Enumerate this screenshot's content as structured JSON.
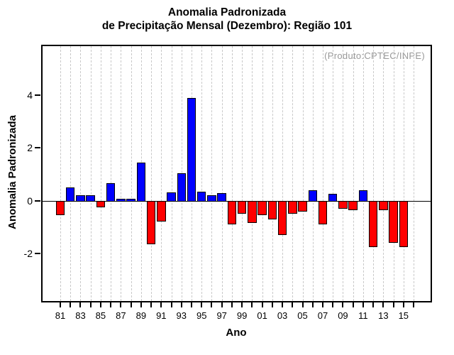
{
  "title": {
    "line1": "Anomalia Padronizada",
    "line2": "de Precipitação Mensal (Dezembro): Região 101"
  },
  "chart_data": {
    "type": "bar",
    "title": "Anomalia Padronizada de Precipitação Mensal (Dezembro): Região 101",
    "xlabel": "Ano",
    "ylabel": "Anomalia Padronizada",
    "annotation": "(Produto:CPTEC/INPE)",
    "annotation_color": "#999999",
    "categories": [
      "81",
      "82",
      "83",
      "84",
      "85",
      "86",
      "87",
      "88",
      "89",
      "90",
      "91",
      "92",
      "93",
      "94",
      "95",
      "96",
      "97",
      "98",
      "99",
      "00",
      "01",
      "02",
      "03",
      "04",
      "05",
      "06",
      "07",
      "08",
      "09",
      "10",
      "11",
      "12",
      "13",
      "14",
      "15"
    ],
    "values": [
      -0.55,
      0.5,
      0.2,
      0.2,
      -0.25,
      0.65,
      0.03,
      0.08,
      1.45,
      -1.65,
      -0.8,
      0.3,
      1.05,
      3.9,
      0.35,
      0.2,
      0.28,
      -0.9,
      -0.5,
      -0.85,
      -0.55,
      -0.7,
      -1.3,
      -0.5,
      -0.4,
      0.38,
      -0.9,
      0.25,
      -0.3,
      -0.35,
      0.4,
      -1.75,
      -0.35,
      -1.6,
      -1.75
    ],
    "x_tick_labels_shown": [
      "81",
      "83",
      "85",
      "87",
      "89",
      "91",
      "93",
      "95",
      "97",
      "99",
      "01",
      "03",
      "05",
      "07",
      "09",
      "11",
      "13",
      "15"
    ],
    "x_axis_last_unlabeled_tick": "16",
    "y_tick_labels": [
      "-2",
      "0",
      "2",
      "4"
    ],
    "y_ticks": [
      -2,
      0,
      2,
      4
    ],
    "ylim": [
      -3.8,
      5.85
    ],
    "grid": "vertical dashed gray line at every yearly tick",
    "legend_position": "none",
    "positive_color": "#0000ff",
    "negative_color": "#ff0000",
    "bar_border_color": "#000000"
  }
}
